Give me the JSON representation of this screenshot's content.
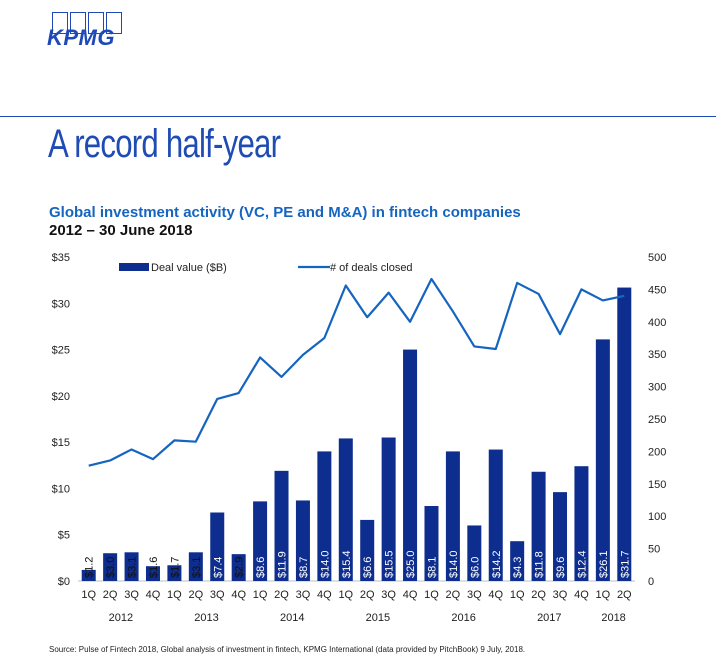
{
  "logo": {
    "text": "KPMG"
  },
  "page_title": "A record half-year",
  "colors": {
    "bar": "#0d2d8f",
    "line": "#1565c0",
    "accent": "#1e49b8"
  },
  "source": "Source: Pulse of Fintech 2018, Global analysis of investment in fintech, KPMG International (data provided by PitchBook) 9 July, 2018.",
  "chart_data": {
    "type": "bar",
    "title": "Global investment activity (VC, PE and M&A) in fintech companies",
    "subtitle": "2012 – 30 June 2018",
    "categories": [
      "1Q",
      "2Q",
      "3Q",
      "4Q",
      "1Q",
      "2Q",
      "3Q",
      "4Q",
      "1Q",
      "2Q",
      "3Q",
      "4Q",
      "1Q",
      "2Q",
      "3Q",
      "4Q",
      "1Q",
      "2Q",
      "3Q",
      "4Q",
      "1Q",
      "2Q",
      "3Q",
      "4Q",
      "1Q",
      "2Q"
    ],
    "years": [
      "2012",
      "2013",
      "2014",
      "2015",
      "2016",
      "2017",
      "2018"
    ],
    "series": [
      {
        "name": "Deal value ($B)",
        "type": "bar",
        "axis": "left",
        "values": [
          1.2,
          3.0,
          3.1,
          1.6,
          1.7,
          3.1,
          7.4,
          2.9,
          8.6,
          11.9,
          8.7,
          14.0,
          15.4,
          6.6,
          15.5,
          25.0,
          8.1,
          14.0,
          6.0,
          14.2,
          4.3,
          11.8,
          9.6,
          12.4,
          26.1,
          31.7
        ],
        "labels": [
          "$1.2",
          "$3.0",
          "$3.1",
          "$1.6",
          "$1.7",
          "$3.1",
          "$7.4",
          "$2.9",
          "$8.6",
          "$11.9",
          "$8.7",
          "$14.0",
          "$15.4",
          "$6.6",
          "$15.5",
          "$25.0",
          "$8.1",
          "$14.0",
          "$6.0",
          "$14.2",
          "$4.3",
          "$11.8",
          "$9.6",
          "$12.4",
          "$26.1",
          "$31.7"
        ]
      },
      {
        "name": "# of deals closed",
        "type": "line",
        "axis": "right",
        "values": [
          178,
          186,
          203,
          188,
          217,
          215,
          281,
          290,
          345,
          315,
          349,
          375,
          456,
          407,
          445,
          400,
          466,
          416,
          362,
          358,
          460,
          443,
          381,
          450,
          433,
          440
        ]
      }
    ],
    "y_left": {
      "min": 0,
      "max": 35,
      "ticks": [
        "$0",
        "$5",
        "$10",
        "$15",
        "$20",
        "$25",
        "$30",
        "$35"
      ]
    },
    "y_right": {
      "min": 0,
      "max": 500,
      "ticks": [
        "0",
        "50",
        "100",
        "150",
        "200",
        "250",
        "300",
        "350",
        "400",
        "450",
        "500"
      ]
    },
    "legend": {
      "placement": "top"
    }
  }
}
